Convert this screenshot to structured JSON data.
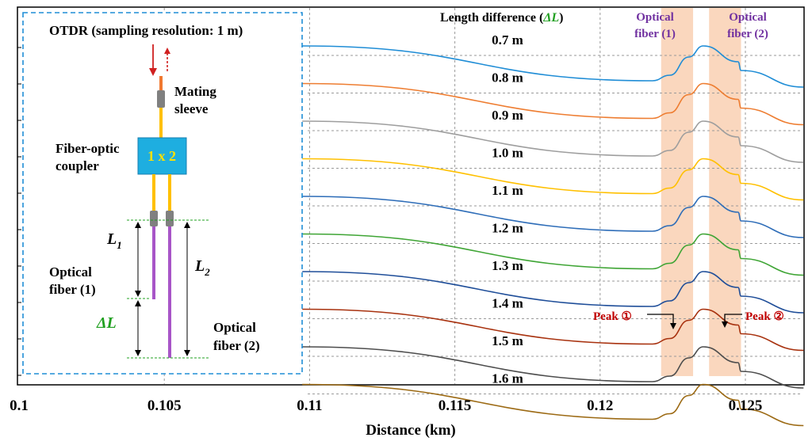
{
  "chart_data": {
    "type": "line",
    "xlabel": "Distance (km)",
    "ylabel": "",
    "xlim": [
      0.1,
      0.127
    ],
    "xticks": [
      "0.1",
      "0.105",
      "0.11",
      "0.115",
      "0.12",
      "0.125"
    ],
    "xtick_values": [
      0.1,
      0.105,
      0.11,
      0.115,
      0.12,
      0.125
    ],
    "grid": "dashed vertical lines at each x tick; dashed horizontal baseline under each trace",
    "legend_title": "Length difference (",
    "legend_title_symbol": "ΔL",
    "legend_title_close": ")",
    "shaded_regions": [
      {
        "label_line1": "Optical",
        "label_line2": "fiber (1)",
        "x_from": 0.1221,
        "x_to": 0.1232
      },
      {
        "label_line1": "Optical",
        "label_line2": "fiber (2)",
        "x_from": 0.12375,
        "x_to": 0.12485
      }
    ],
    "annotations": {
      "peak1": "Peak ①",
      "peak2": "Peak ②",
      "peak1_x": 0.1227,
      "peak2_x": 0.1243
    },
    "series": [
      {
        "name": "0.7 m",
        "color": "#1f8dd6",
        "x": [
          0.10975,
          0.1218,
          0.1224,
          0.12305,
          0.12355,
          0.12475,
          0.12485,
          0.127
        ],
        "y": [
          0.0,
          -0.044,
          -0.037,
          -0.014,
          0.0,
          -0.02,
          -0.031,
          -0.052
        ]
      },
      {
        "name": "0.8 m",
        "color": "#ee7d31",
        "x": [
          0.10975,
          0.1218,
          0.1224,
          0.12305,
          0.12355,
          0.12475,
          0.12485,
          0.127
        ],
        "y": [
          0.0,
          -0.044,
          -0.037,
          -0.014,
          0.0,
          -0.02,
          -0.031,
          -0.052
        ]
      },
      {
        "name": "0.9 m",
        "color": "#9e9e9e",
        "x": [
          0.10975,
          0.1218,
          0.1224,
          0.12305,
          0.12355,
          0.12475,
          0.12485,
          0.127
        ],
        "y": [
          0.0,
          -0.044,
          -0.037,
          -0.014,
          0.0,
          -0.02,
          -0.031,
          -0.052
        ]
      },
      {
        "name": "1.0 m",
        "color": "#ffc000",
        "x": [
          0.10975,
          0.1218,
          0.1224,
          0.12305,
          0.12355,
          0.12475,
          0.12485,
          0.127
        ],
        "y": [
          0.0,
          -0.044,
          -0.037,
          -0.014,
          0.0,
          -0.02,
          -0.031,
          -0.052
        ]
      },
      {
        "name": "1.1 m",
        "color": "#2e6db8",
        "x": [
          0.10975,
          0.1218,
          0.1224,
          0.12305,
          0.12355,
          0.12475,
          0.12485,
          0.127
        ],
        "y": [
          0.0,
          -0.044,
          -0.037,
          -0.014,
          0.0,
          -0.02,
          -0.031,
          -0.052
        ]
      },
      {
        "name": "1.2 m",
        "color": "#3fa535",
        "x": [
          0.10975,
          0.1218,
          0.1224,
          0.12305,
          0.12355,
          0.12475,
          0.12485,
          0.127
        ],
        "y": [
          0.0,
          -0.044,
          -0.037,
          -0.014,
          0.0,
          -0.02,
          -0.031,
          -0.052
        ]
      },
      {
        "name": "1.3 m",
        "color": "#1f4e99",
        "x": [
          0.10975,
          0.1218,
          0.1224,
          0.12305,
          0.12355,
          0.12475,
          0.12485,
          0.127
        ],
        "y": [
          0.0,
          -0.044,
          -0.037,
          -0.014,
          0.0,
          -0.02,
          -0.031,
          -0.052
        ]
      },
      {
        "name": "1.4 m",
        "color": "#a8320f",
        "x": [
          0.10975,
          0.1218,
          0.1224,
          0.12305,
          0.12355,
          0.12475,
          0.12485,
          0.127
        ],
        "y": [
          0.0,
          -0.044,
          -0.037,
          -0.014,
          0.0,
          -0.02,
          -0.031,
          -0.052
        ]
      },
      {
        "name": "1.5 m",
        "color": "#4d4d4d",
        "x": [
          0.10975,
          0.1218,
          0.1224,
          0.12305,
          0.12355,
          0.12475,
          0.12485,
          0.127
        ],
        "y": [
          0.0,
          -0.044,
          -0.037,
          -0.014,
          0.0,
          -0.02,
          -0.031,
          -0.052
        ]
      },
      {
        "name": "1.6 m",
        "color": "#9c6a14",
        "x": [
          0.10975,
          0.1218,
          0.1224,
          0.12305,
          0.12355,
          0.12475,
          0.12485,
          0.127
        ],
        "y": [
          0.0,
          -0.044,
          -0.037,
          -0.014,
          0.0,
          -0.02,
          -0.031,
          -0.052
        ]
      }
    ]
  },
  "schematic": {
    "title": "OTDR (sampling resolution: 1 m)",
    "mating_sleeve_1": "Mating",
    "mating_sleeve_2": "sleeve",
    "coupler_1": "Fiber-optic",
    "coupler_2": "coupler",
    "coupler_box": "1 x 2",
    "l1": "L",
    "l1_sub": "1",
    "l2": "L",
    "l2_sub": "2",
    "delta_l": "ΔL",
    "fiber1_1": "Optical",
    "fiber1_2": "fiber (1)",
    "fiber2_1": "Optical",
    "fiber2_2": "fiber (2)",
    "colors": {
      "box_border": "#1f8dd6",
      "coupler_fill": "#1eaee0",
      "coupler_text": "#ffe100",
      "fiber": "#ffc000",
      "fiber_violet": "#a855c8",
      "arrow": "#d02020",
      "green": "#20a020",
      "purple": "#7030a0",
      "peak": "#c00000",
      "shade": "#f8caa8"
    }
  }
}
